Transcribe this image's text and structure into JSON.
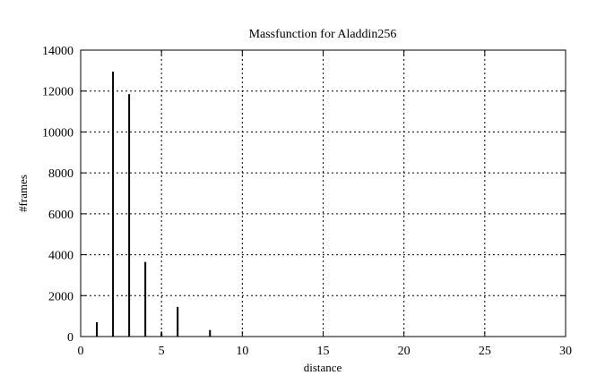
{
  "chart_data": {
    "type": "bar",
    "title": "Massfunction for Aladdin256",
    "xlabel": "distance",
    "ylabel": "#frames",
    "xlim": [
      0,
      30
    ],
    "ylim": [
      0,
      14000
    ],
    "x_ticks": [
      0,
      5,
      10,
      15,
      20,
      25,
      30
    ],
    "y_ticks": [
      0,
      2000,
      4000,
      6000,
      8000,
      10000,
      12000,
      14000
    ],
    "grid": true,
    "x": [
      1,
      2,
      3,
      4,
      5,
      6,
      8
    ],
    "values": [
      700,
      12950,
      11850,
      3650,
      200,
      1450,
      320
    ],
    "line_color": "#000000",
    "background": "#ffffff"
  }
}
